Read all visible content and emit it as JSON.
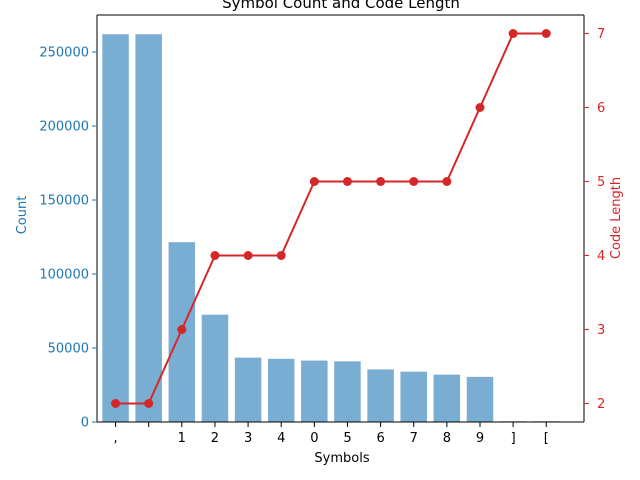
{
  "chart_data": {
    "type": "bar",
    "title": "Symbol Count and Code Length",
    "xlabel": "Symbols",
    "ylabel_left": "Count",
    "ylabel_right": "Code Length",
    "categories": [
      ",",
      " ",
      "1",
      "2",
      "3",
      "4",
      "0",
      "5",
      "6",
      "7",
      "8",
      "9",
      "]",
      "["
    ],
    "series": [
      {
        "name": "Count",
        "type": "bar",
        "axis": "left",
        "color": "#1f77b4",
        "values": [
          262000,
          262000,
          121500,
          72500,
          43500,
          42700,
          41500,
          41000,
          35500,
          34000,
          32000,
          30500,
          500,
          500
        ]
      },
      {
        "name": "Code Length",
        "type": "line",
        "axis": "right",
        "color": "#d62728",
        "values": [
          2,
          2,
          3,
          4,
          4,
          4,
          5,
          5,
          5,
          5,
          5,
          6,
          7,
          7
        ]
      }
    ],
    "ylim_left": [
      0,
      275000
    ],
    "yticks_left": [
      0,
      50000,
      100000,
      150000,
      200000,
      250000
    ],
    "ylim_right": [
      1.75,
      7.25
    ],
    "yticks_right": [
      2,
      3,
      4,
      5,
      6,
      7
    ],
    "grid": false,
    "left_axis_color": "#1f77b4",
    "right_axis_color": "#d62728"
  }
}
